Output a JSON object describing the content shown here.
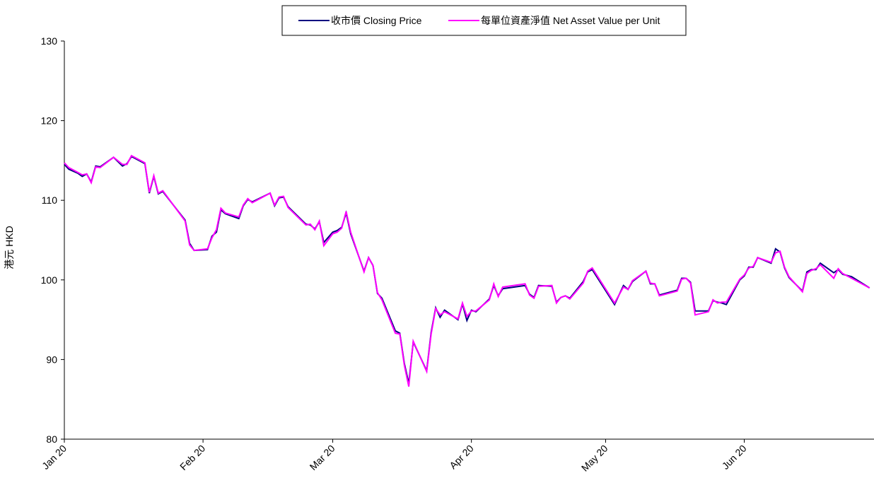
{
  "chart_data": {
    "type": "line",
    "y_label": "港元 HKD",
    "xlim": [
      1,
      182
    ],
    "xticks": [
      {
        "value": 1,
        "label": "Jan 20"
      },
      {
        "value": 32,
        "label": "Feb 20"
      },
      {
        "value": 61,
        "label": "Mar 20"
      },
      {
        "value": 92,
        "label": "Apr 20"
      },
      {
        "value": 122,
        "label": "May 20"
      },
      {
        "value": 153,
        "label": "Jun 20"
      }
    ],
    "ylim": [
      80,
      130
    ],
    "yticks": [
      80,
      90,
      100,
      110,
      120,
      130
    ],
    "x": [
      1,
      2,
      4,
      5,
      6,
      7,
      8,
      9,
      12,
      14,
      15,
      16,
      19,
      20,
      21,
      22,
      23,
      28,
      29,
      30,
      33,
      34,
      35,
      36,
      37,
      40,
      41,
      42,
      43,
      47,
      48,
      49,
      50,
      51,
      55,
      56,
      57,
      58,
      59,
      61,
      62,
      63,
      64,
      65,
      68,
      69,
      70,
      71,
      72,
      75,
      76,
      77,
      78,
      79,
      82,
      83,
      84,
      85,
      86,
      89,
      90,
      91,
      92,
      93,
      96,
      97,
      98,
      99,
      104,
      105,
      106,
      107,
      110,
      111,
      112,
      113,
      114,
      117,
      118,
      119,
      124,
      126,
      127,
      128,
      131,
      132,
      133,
      134,
      138,
      139,
      140,
      141,
      142,
      145,
      146,
      147,
      148,
      149,
      152,
      153,
      154,
      155,
      156,
      159,
      160,
      161,
      162,
      163,
      166,
      167,
      168,
      169,
      170,
      173,
      174,
      175,
      177,
      181
    ],
    "series": [
      {
        "name": "收市價 Closing Price",
        "color": "#000080",
        "values": [
          114.5,
          113.9,
          113.4,
          113.0,
          113.3,
          112.3,
          114.3,
          114.2,
          115.4,
          114.3,
          114.6,
          115.5,
          114.6,
          110.9,
          113.0,
          110.8,
          111.1,
          107.5,
          104.6,
          103.7,
          103.8,
          105.5,
          106.0,
          108.8,
          108.3,
          107.7,
          109.3,
          110.1,
          109.8,
          110.9,
          109.3,
          110.3,
          110.4,
          109.2,
          107.0,
          106.9,
          106.4,
          107.3,
          104.7,
          106.0,
          106.2,
          106.6,
          108.4,
          105.8,
          101.1,
          102.8,
          101.8,
          98.3,
          97.7,
          93.6,
          93.3,
          89.5,
          87.0,
          92.2,
          88.6,
          93.4,
          96.5,
          95.3,
          96.2,
          95.0,
          97.0,
          94.9,
          96.2,
          96.0,
          97.6,
          99.3,
          98.0,
          98.9,
          99.3,
          98.2,
          97.8,
          99.3,
          99.2,
          97.2,
          97.8,
          98.0,
          97.7,
          99.8,
          101.0,
          101.3,
          96.9,
          99.3,
          98.8,
          99.8,
          101.1,
          99.5,
          99.5,
          98.1,
          98.7,
          100.2,
          100.2,
          99.7,
          96.1,
          96.1,
          97.4,
          97.2,
          97.1,
          96.9,
          100.0,
          100.5,
          101.6,
          101.6,
          102.8,
          102.1,
          103.9,
          103.5,
          101.5,
          100.3,
          98.6,
          101.0,
          101.3,
          101.3,
          102.1,
          100.9,
          101.3,
          100.7,
          100.4,
          99.0
        ]
      },
      {
        "name": "每單位資產淨值 Net Asset Value per Unit",
        "color": "#ff00ff",
        "values": [
          114.7,
          114.1,
          113.5,
          113.2,
          113.3,
          112.2,
          114.2,
          114.1,
          115.4,
          114.5,
          114.5,
          115.6,
          114.7,
          111.0,
          113.1,
          110.9,
          111.2,
          107.4,
          104.4,
          103.7,
          103.9,
          105.3,
          106.3,
          109.0,
          108.4,
          107.9,
          109.4,
          110.2,
          109.7,
          110.9,
          109.4,
          110.4,
          110.5,
          109.1,
          106.9,
          107.0,
          106.3,
          107.4,
          104.3,
          105.8,
          106.0,
          106.5,
          108.6,
          106.0,
          101.0,
          102.8,
          101.8,
          98.4,
          97.5,
          93.3,
          93.2,
          89.3,
          86.6,
          92.3,
          88.5,
          93.2,
          96.4,
          95.6,
          96.0,
          95.1,
          97.1,
          95.4,
          96.1,
          96.1,
          97.5,
          99.5,
          97.9,
          99.1,
          99.5,
          98.1,
          97.7,
          99.2,
          99.3,
          97.1,
          97.8,
          98.0,
          97.6,
          99.6,
          101.1,
          101.5,
          97.1,
          99.1,
          98.8,
          99.9,
          101.1,
          99.6,
          99.5,
          98.0,
          98.6,
          100.1,
          100.2,
          99.6,
          95.6,
          96.0,
          97.5,
          97.1,
          97.2,
          97.2,
          100.1,
          100.6,
          101.5,
          101.7,
          102.8,
          102.2,
          103.4,
          103.6,
          101.6,
          100.4,
          98.5,
          100.8,
          101.2,
          101.4,
          101.9,
          100.2,
          101.4,
          100.8,
          100.2,
          99.0
        ]
      }
    ]
  }
}
